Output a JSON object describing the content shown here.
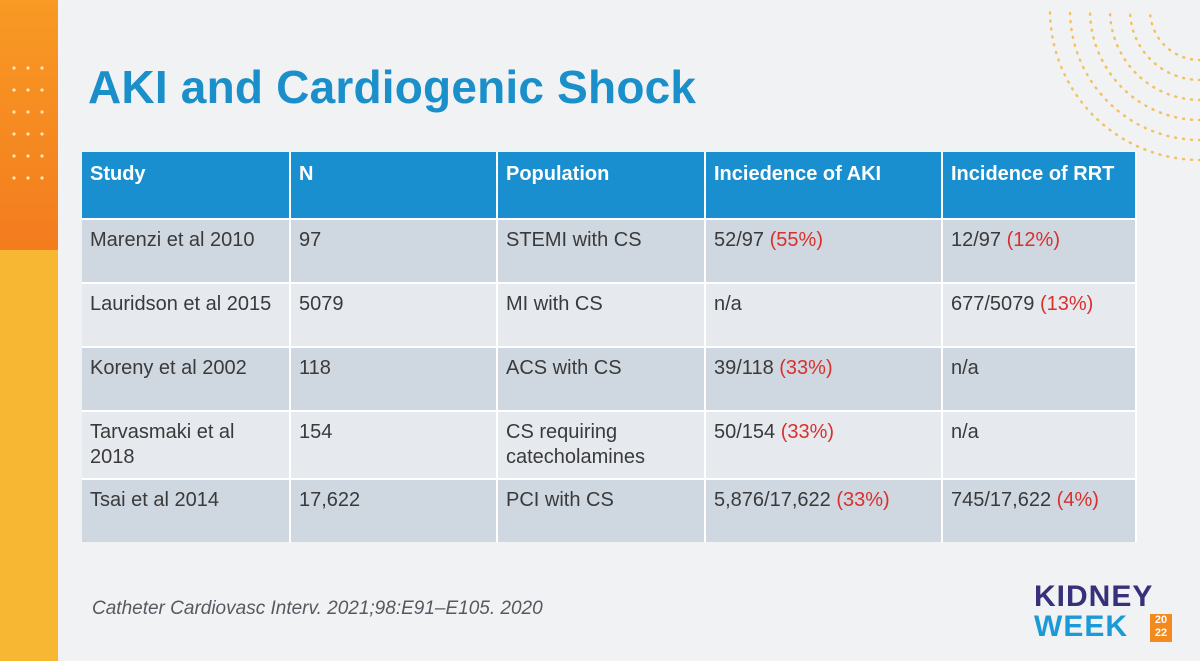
{
  "slide": {
    "title": "AKI and Cardiogenic Shock",
    "citation": "Catheter Cardiovasc Interv. 2021;98:E91–E105. 2020"
  },
  "table": {
    "headers": [
      "Study",
      "N",
      "Population",
      "Inciedence of AKI",
      "Incidence of RRT"
    ],
    "rows": [
      {
        "study": "Marenzi et al 2010",
        "n": "97",
        "population": "STEMI with CS",
        "aki": {
          "count": "52/97",
          "pct": "(55%)"
        },
        "rrt": {
          "count": "12/97",
          "pct": "(12%)"
        }
      },
      {
        "study": "Lauridson et al 2015",
        "n": "5079",
        "population": "MI with CS",
        "aki": {
          "count": "n/a",
          "pct": ""
        },
        "rrt": {
          "count": "677/5079",
          "pct": "(13%)"
        }
      },
      {
        "study": "Koreny et al 2002",
        "n": "118",
        "population": "ACS with CS",
        "aki": {
          "count": "39/118",
          "pct": "(33%)"
        },
        "rrt": {
          "count": "n/a",
          "pct": ""
        }
      },
      {
        "study": "Tarvasmaki et al 2018",
        "n": "154",
        "population": "CS requiring catecholamines",
        "aki": {
          "count": "50/154",
          "pct": "(33%)"
        },
        "rrt": {
          "count": "n/a",
          "pct": ""
        }
      },
      {
        "study": "Tsai et al 2014",
        "n": "17,622",
        "population": "PCI with CS",
        "aki": {
          "count": "5,876/17,622",
          "pct": "(33%)"
        },
        "rrt": {
          "count": "745/17,622",
          "pct": "(4%)"
        }
      }
    ]
  },
  "logo": {
    "line1": "KIDNEY",
    "line2": "WEEK",
    "year_top": "20",
    "year_bottom": "22"
  },
  "colors": {
    "title": "#1a8fc9",
    "header_bg": "#1a8fd0",
    "percent_text": "#d9302d",
    "row_dark": "#cfd7e0",
    "row_light": "#e6eaef",
    "accent_orange": "#f37a1e",
    "accent_yellow": "#f7b733"
  }
}
